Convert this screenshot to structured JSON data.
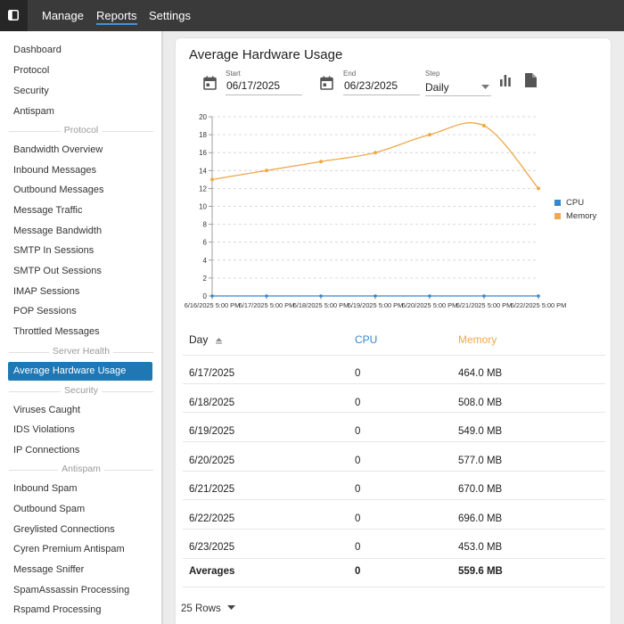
{
  "topbar": {
    "nav": [
      "Manage",
      "Reports",
      "Settings"
    ],
    "active": "Reports"
  },
  "sidebar": {
    "items_top": [
      "Dashboard",
      "Protocol",
      "Security",
      "Antispam"
    ],
    "sections": [
      {
        "title": "Protocol",
        "items": [
          "Bandwidth Overview",
          "Inbound Messages",
          "Outbound Messages",
          "Message Traffic",
          "Message Bandwidth",
          "SMTP In Sessions",
          "SMTP Out Sessions",
          "IMAP Sessions",
          "POP Sessions",
          "Throttled Messages"
        ]
      },
      {
        "title": "Server Health",
        "items": [
          "Average Hardware Usage"
        ]
      },
      {
        "title": "Security",
        "items": [
          "Viruses Caught",
          "IDS Violations",
          "IP Connections"
        ]
      },
      {
        "title": "Antispam",
        "items": [
          "Inbound Spam",
          "Outbound Spam",
          "Greylisted Connections",
          "Cyren Premium Antispam",
          "Message Sniffer",
          "SpamAssassin Processing",
          "Rspamd Processing"
        ]
      }
    ],
    "active_item": "Average Hardware Usage"
  },
  "report": {
    "title": "Average Hardware Usage",
    "start_label": "Start",
    "start_value": "06/17/2025",
    "end_label": "End",
    "end_value": "06/23/2025",
    "step_label": "Step",
    "step_value": "Daily"
  },
  "chart_data": {
    "type": "line",
    "x": [
      "6/16/2025 5:00 PM",
      "6/17/2025 5:00 PM",
      "6/18/2025 5:00 PM",
      "6/19/2025 5:00 PM",
      "6/20/2025 5:00 PM",
      "6/21/2025 5:00 PM",
      "6/22/2025 5:00 PM"
    ],
    "ylim": [
      0,
      20
    ],
    "yticks": [
      0,
      2,
      4,
      6,
      8,
      10,
      12,
      14,
      16,
      18,
      20
    ],
    "grid": true,
    "legend": "right",
    "series": [
      {
        "name": "CPU",
        "color": "#3a86c8",
        "values": [
          0,
          0,
          0,
          0,
          0,
          0,
          0
        ]
      },
      {
        "name": "Memory",
        "color": "#f0a84a",
        "values": [
          13,
          14,
          15,
          16,
          18,
          19,
          12
        ]
      }
    ]
  },
  "table": {
    "headers": [
      "Day",
      "CPU",
      "Memory"
    ],
    "header_colors": [
      "#222222",
      "#3a86c8",
      "#f0a84a"
    ],
    "rows": [
      [
        "6/17/2025",
        "0",
        "464.0 MB"
      ],
      [
        "6/18/2025",
        "0",
        "508.0 MB"
      ],
      [
        "6/19/2025",
        "0",
        "549.0 MB"
      ],
      [
        "6/20/2025",
        "0",
        "577.0 MB"
      ],
      [
        "6/21/2025",
        "0",
        "670.0 MB"
      ],
      [
        "6/22/2025",
        "0",
        "696.0 MB"
      ],
      [
        "6/23/2025",
        "0",
        "453.0 MB"
      ]
    ],
    "footer": [
      "Averages",
      "0",
      "559.6 MB"
    ],
    "rows_per_page": "25 Rows"
  }
}
